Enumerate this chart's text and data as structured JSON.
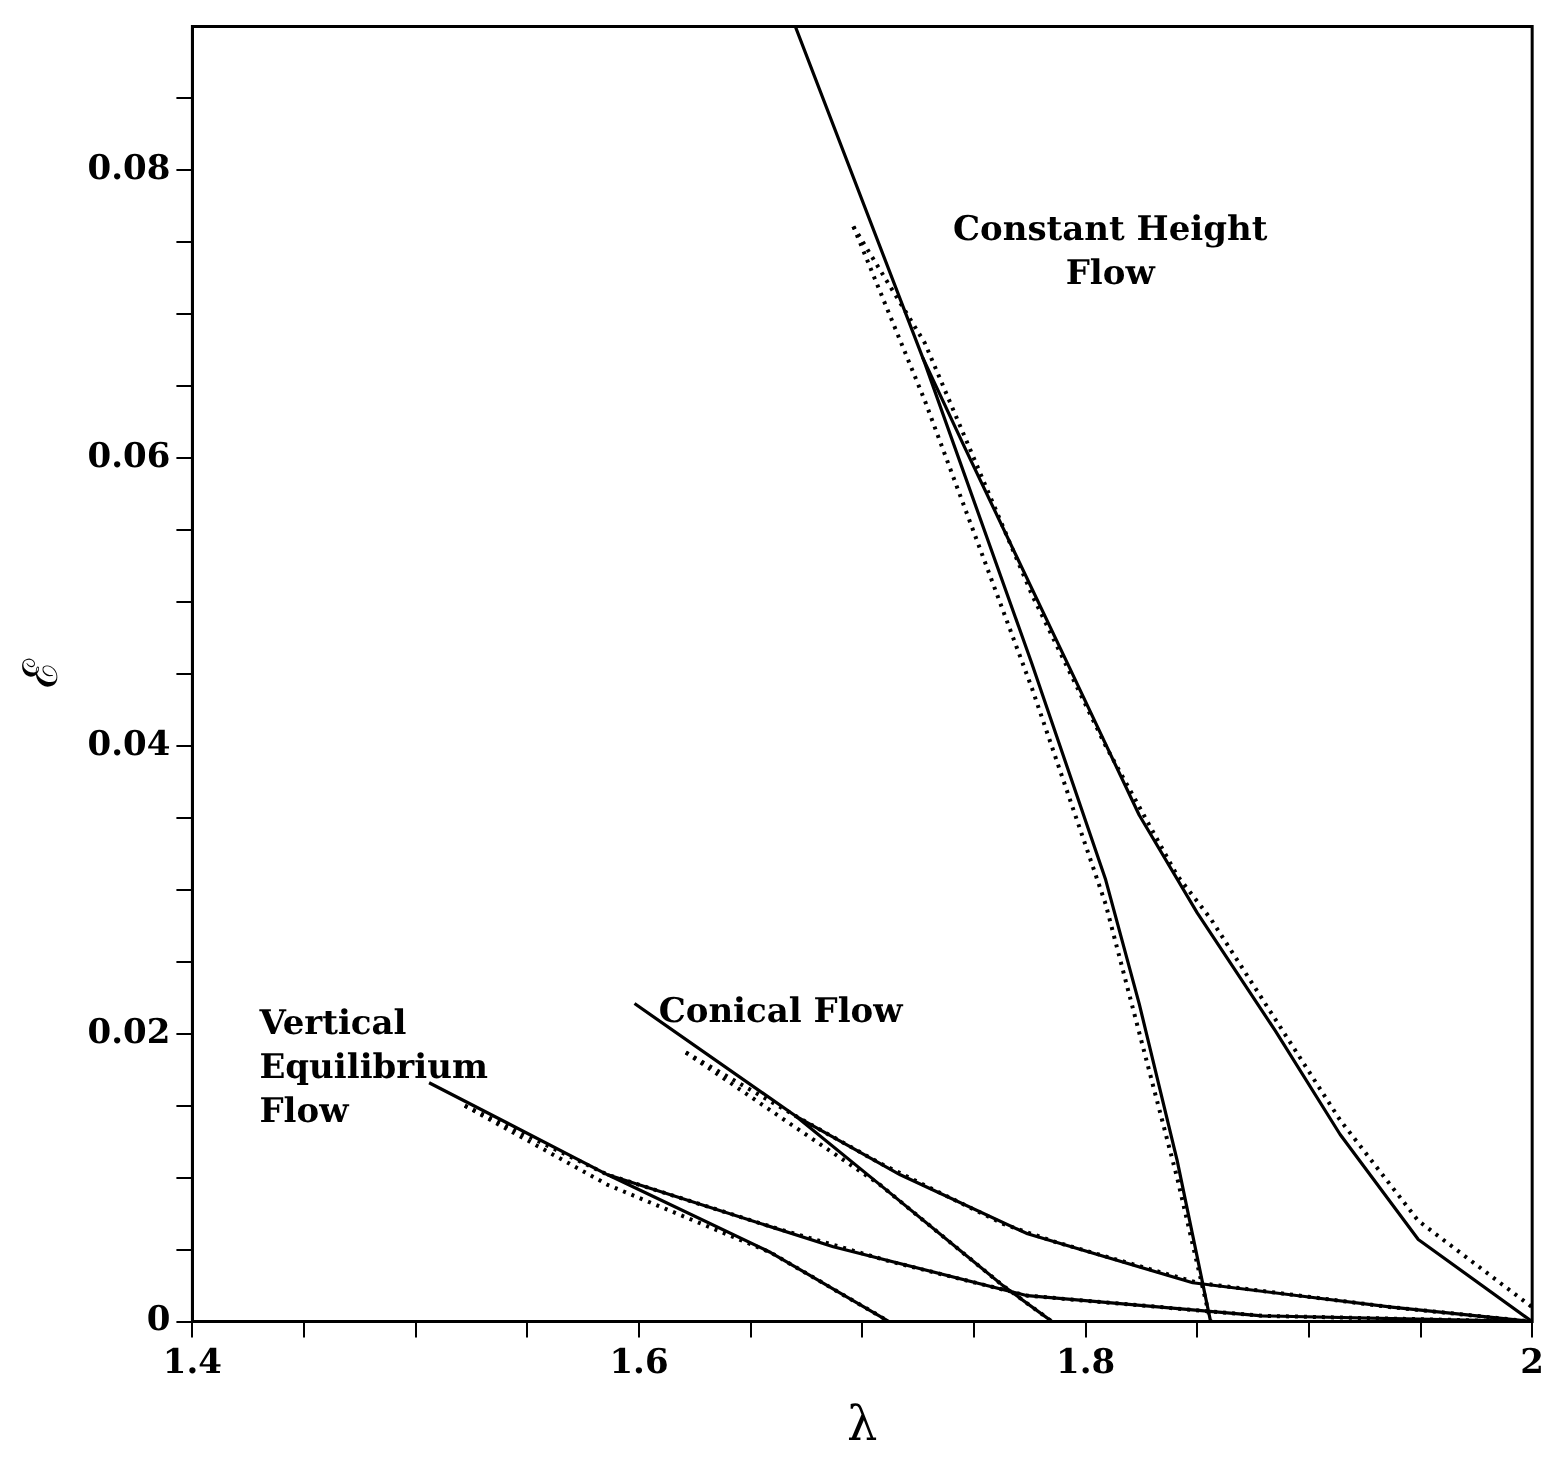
{
  "chart_data": {
    "type": "line",
    "xlabel": "λ",
    "ylabel": "ℰ",
    "xlim": [
      1.4,
      2
    ],
    "ylim": [
      0,
      0.09
    ],
    "xticks": [
      1.4,
      {
        "value": 1.45,
        "label": null
      },
      {
        "value": 1.5,
        "label": null
      },
      {
        "value": 1.55,
        "label": null
      },
      1.6,
      {
        "value": 1.65,
        "label": null
      },
      {
        "value": 1.7,
        "label": null
      },
      {
        "value": 1.75,
        "label": null
      },
      1.8,
      {
        "value": 1.85,
        "label": null
      },
      {
        "value": 1.9,
        "label": null
      },
      {
        "value": 1.95,
        "label": null
      },
      2
    ],
    "yticks": [
      0,
      {
        "value": 0.005,
        "label": null
      },
      {
        "value": 0.01,
        "label": null
      },
      {
        "value": 0.015,
        "label": null
      },
      0.02,
      {
        "value": 0.025,
        "label": null
      },
      {
        "value": 0.03,
        "label": null
      },
      {
        "value": 0.035,
        "label": null
      },
      0.04,
      {
        "value": 0.045,
        "label": null
      },
      {
        "value": 0.05,
        "label": null
      },
      {
        "value": 0.055,
        "label": null
      },
      0.06,
      {
        "value": 0.065,
        "label": null
      },
      {
        "value": 0.07,
        "label": null
      },
      {
        "value": 0.075,
        "label": null
      },
      0.08,
      {
        "value": 0.085,
        "label": null
      }
    ],
    "grid": false,
    "legend": false,
    "marker": "none",
    "series": [
      {
        "color": "#000000",
        "line_style": "dotted",
        "x": [
          1.696,
          1.728,
          1.776,
          1.809,
          1.841,
          1.856,
          1.885,
          1.914,
          1.949,
          2.0
        ],
        "values": [
          0.0761,
          0.068,
          0.0505,
          0.04,
          0.031,
          0.028,
          0.021,
          0.014,
          0.007,
          0.001
        ]
      },
      {
        "color": "#000000",
        "line_style": "dotted",
        "x": [
          1.696,
          1.728,
          1.776,
          1.809,
          1.841,
          1.856
        ],
        "values": [
          0.0761,
          0.064,
          0.044,
          0.029,
          0.01,
          0
        ]
      },
      {
        "color": "#000000",
        "line_style": "dotted",
        "x": [
          1.621,
          1.67,
          1.708,
          1.763,
          1.785,
          1.85,
          1.937,
          2.0
        ],
        "values": [
          0.0187,
          0.0143,
          0.011,
          0.0068,
          0.0056,
          0.0027,
          0.001,
          0
        ]
      },
      {
        "color": "#000000",
        "line_style": "dotted",
        "x": [
          1.621,
          1.67,
          1.708,
          1.763,
          1.785
        ],
        "values": [
          0.0187,
          0.0135,
          0.0095,
          0.0025,
          0
        ]
      },
      {
        "color": "#000000",
        "line_style": "dotted",
        "x": [
          1.522,
          1.586,
          1.659,
          1.712,
          1.774,
          1.879,
          2.0
        ],
        "values": [
          0.015,
          0.0102,
          0.0066,
          0.0042,
          0.0018,
          0.0004,
          0
        ]
      },
      {
        "color": "#000000",
        "line_style": "dotted",
        "x": [
          1.522,
          1.586,
          1.659,
          1.712
        ],
        "values": [
          0.015,
          0.0095,
          0.0048,
          0
        ]
      },
      {
        "color": "#000000",
        "line_style": "solid",
        "x": [
          1.67,
          1.728,
          1.776,
          1.809,
          1.824,
          1.841,
          1.856
        ],
        "values": [
          0.09,
          0.0666,
          0.0457,
          0.0307,
          0.0221,
          0.0112,
          0
        ]
      },
      {
        "color": "#000000",
        "line_style": "solid",
        "x": [
          1.727,
          1.746,
          1.792,
          1.824,
          1.85,
          1.885,
          1.914,
          1.949,
          2.0
        ],
        "values": [
          0.067,
          0.0607,
          0.0457,
          0.0352,
          0.0284,
          0.0202,
          0.013,
          0.0057,
          0
        ]
      },
      {
        "color": "#000000",
        "line_style": "solid",
        "x": [
          1.598,
          1.67,
          1.717,
          1.774,
          1.848,
          1.937,
          2.0
        ],
        "values": [
          0.0221,
          0.0143,
          0.0102,
          0.0061,
          0.0027,
          0.001,
          0
        ]
      },
      {
        "color": "#000000",
        "line_style": "solid",
        "x": [
          1.67,
          1.708,
          1.763,
          1.785
        ],
        "values": [
          0.0143,
          0.0095,
          0.0025,
          0
        ]
      },
      {
        "color": "#000000",
        "line_style": "solid",
        "x": [
          1.506,
          1.586,
          1.687,
          1.774,
          1.879,
          2.0
        ],
        "values": [
          0.0166,
          0.0102,
          0.0052,
          0.0018,
          0.0004,
          0
        ]
      },
      {
        "color": "#000000",
        "line_style": "solid",
        "x": [
          1.586,
          1.659,
          1.712
        ],
        "values": [
          0.0102,
          0.0048,
          0
        ]
      }
    ],
    "annotations": [
      "Constant Height\nFlow",
      "Conical Flow",
      "Vertical\nEquilibrium\nFlow"
    ]
  }
}
